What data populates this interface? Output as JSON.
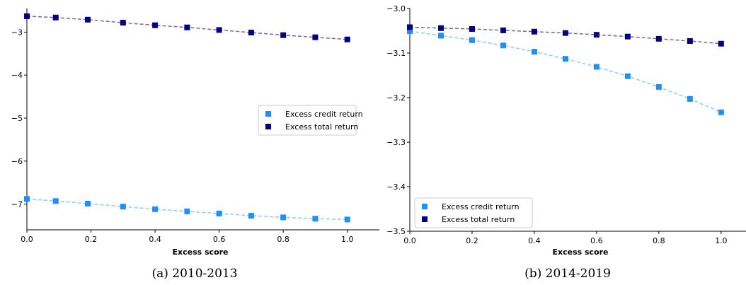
{
  "colors": {
    "credit_marker": "#1e8fff",
    "credit_line": "#87cefa",
    "total_marker": "#000080",
    "total_line": "#6f6aaa",
    "axis": "#000000",
    "legend_border": "#cccccc"
  },
  "chart_data": [
    {
      "type": "line",
      "caption": "(a) 2010-2013",
      "xlabel": "Excess score",
      "ylabel": "",
      "xlim": [
        0.0,
        1.1
      ],
      "ylim": [
        -7.6,
        -2.45
      ],
      "xticks": [
        0.0,
        0.2,
        0.4,
        0.6,
        0.8,
        1.0
      ],
      "xtick_labels": [
        "0.0",
        "0.2",
        "0.4",
        "0.6",
        "0.8",
        "1.0"
      ],
      "yticks": [
        -3,
        -4,
        -5,
        -6,
        -7
      ],
      "ytick_labels": [
        "−3",
        "−4",
        "−5",
        "−6",
        "−7"
      ],
      "legend_position": "center-right",
      "x": [
        0.0,
        0.09,
        0.19,
        0.3,
        0.4,
        0.5,
        0.6,
        0.7,
        0.8,
        0.9,
        1.0
      ],
      "series": [
        {
          "name": "Excess credit return",
          "values": [
            -6.88,
            -6.93,
            -6.99,
            -7.06,
            -7.12,
            -7.17,
            -7.22,
            -7.27,
            -7.31,
            -7.34,
            -7.36
          ]
        },
        {
          "name": "Excess total return",
          "values": [
            -2.63,
            -2.66,
            -2.71,
            -2.78,
            -2.84,
            -2.89,
            -2.95,
            -3.01,
            -3.07,
            -3.12,
            -3.17
          ]
        }
      ]
    },
    {
      "type": "line",
      "caption": "(b) 2014-2019",
      "xlabel": "Excess score",
      "ylabel": "",
      "xlim": [
        0.0,
        1.08
      ],
      "ylim": [
        -3.5,
        -3.0
      ],
      "xticks": [
        0.0,
        0.2,
        0.4,
        0.6,
        0.8,
        1.0
      ],
      "xtick_labels": [
        "0.0",
        "0.2",
        "0.4",
        "0.6",
        "0.8",
        "1.0"
      ],
      "yticks": [
        -3.0,
        -3.1,
        -3.2,
        -3.3,
        -3.4,
        -3.5
      ],
      "ytick_labels": [
        "−3.0",
        "−3.1",
        "−3.2",
        "−3.3",
        "−3.4",
        "−3.5"
      ],
      "legend_position": "lower-left",
      "x": [
        0.0,
        0.1,
        0.2,
        0.3,
        0.4,
        0.5,
        0.6,
        0.7,
        0.8,
        0.9,
        1.0
      ],
      "series": [
        {
          "name": "Excess credit return",
          "values": [
            -3.051,
            -3.061,
            -3.071,
            -3.083,
            -3.097,
            -3.113,
            -3.131,
            -3.152,
            -3.176,
            -3.203,
            -3.233
          ]
        },
        {
          "name": "Excess total return",
          "values": [
            -3.042,
            -3.044,
            -3.046,
            -3.049,
            -3.052,
            -3.055,
            -3.059,
            -3.063,
            -3.068,
            -3.073,
            -3.079
          ]
        }
      ]
    }
  ]
}
